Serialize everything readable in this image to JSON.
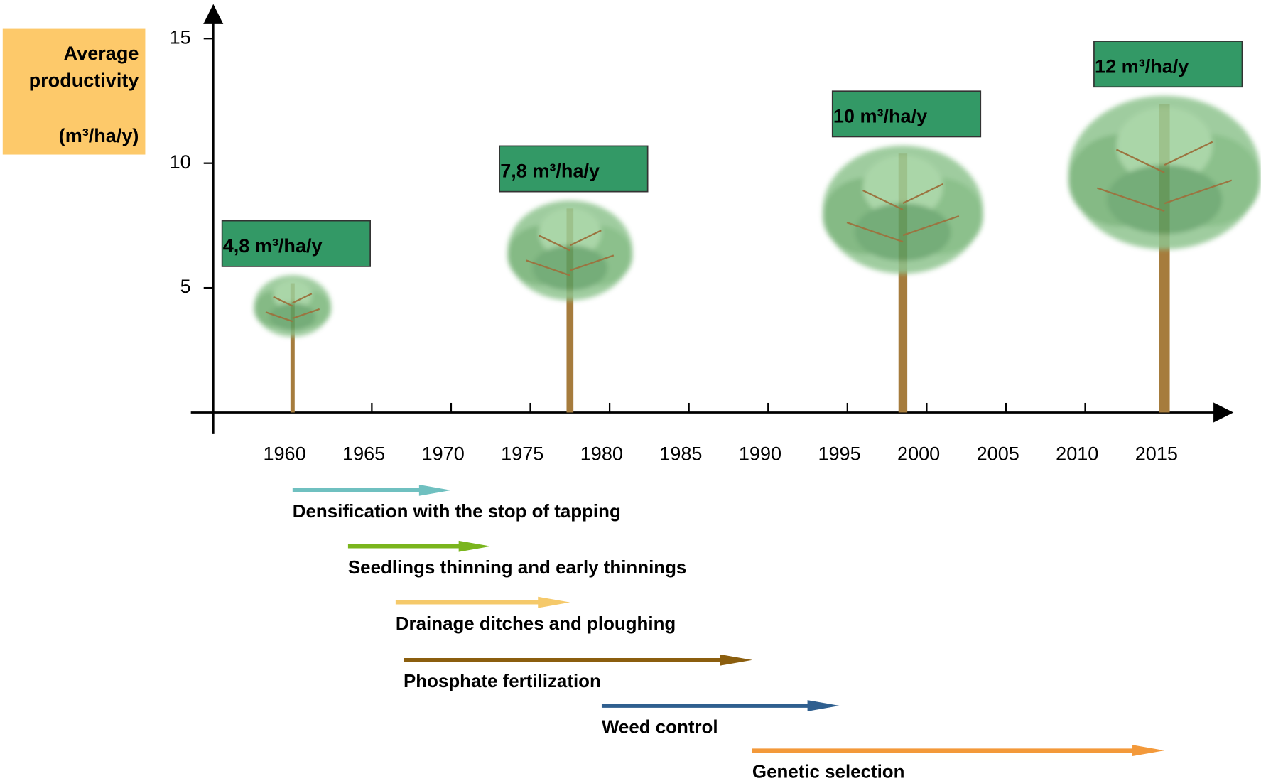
{
  "chart_data": {
    "type": "scatter",
    "ylabel": "Average productivity (m³/ha/y)",
    "x": [
      1960,
      1977.5,
      1998.5,
      2015
    ],
    "values": [
      4.8,
      7.8,
      10,
      12
    ],
    "value_labels": [
      "4,8 m³/ha/y",
      "7,8 m³/ha/y",
      "10 m³/ha/y",
      "12 m³/ha/y"
    ],
    "color": "#339966",
    "xlim": [
      1955,
      2019
    ],
    "xticks": [
      1960,
      1965,
      1970,
      1975,
      1980,
      1985,
      1990,
      1995,
      2000,
      2005,
      2010,
      2015
    ],
    "ylim": [
      0,
      16
    ],
    "yticks": [
      5,
      10,
      15
    ],
    "practices": [
      {
        "name": "Densification with the stop of tapping",
        "start": 1960,
        "end": 1970,
        "color": "#6fc0c0"
      },
      {
        "name": "Seedlings thinning and early thinnings",
        "start": 1963.5,
        "end": 1972.5,
        "color": "#7ab51d"
      },
      {
        "name": "Drainage ditches and ploughing",
        "start": 1966.5,
        "end": 1977.5,
        "color": "#f5c96a"
      },
      {
        "name": "Phosphate fertilization",
        "start": 1967,
        "end": 1989,
        "color": "#8b5e0e"
      },
      {
        "name": "Weed control",
        "start": 1979.5,
        "end": 1994.5,
        "color": "#2f5f8f"
      },
      {
        "name": "Genetic selection",
        "start": 1989,
        "end": 2015,
        "color": "#f3993a"
      }
    ]
  }
}
